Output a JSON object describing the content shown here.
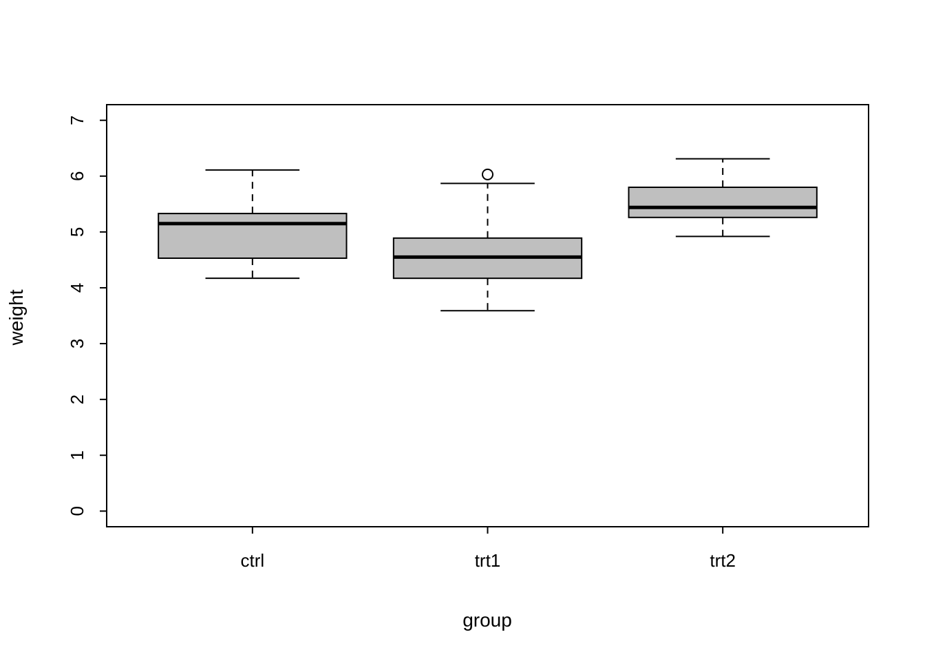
{
  "chart_data": {
    "type": "boxplot",
    "title": "",
    "xlabel": "group",
    "ylabel": "weight",
    "categories": [
      "ctrl",
      "trt1",
      "trt2"
    ],
    "ylim": [
      0,
      7
    ],
    "yticks": [
      0,
      1,
      2,
      3,
      4,
      5,
      6,
      7
    ],
    "grid": false,
    "legend": "none",
    "boxes": [
      {
        "group": "ctrl",
        "whisker_low": 4.17,
        "q1": 4.53,
        "median": 5.15,
        "q3": 5.33,
        "whisker_high": 6.11,
        "outliers": []
      },
      {
        "group": "trt1",
        "whisker_low": 3.59,
        "q1": 4.17,
        "median": 4.55,
        "q3": 4.89,
        "whisker_high": 5.87,
        "outliers": [
          6.03
        ]
      },
      {
        "group": "trt2",
        "whisker_low": 4.92,
        "q1": 5.26,
        "median": 5.44,
        "q3": 5.8,
        "whisker_high": 6.31,
        "outliers": []
      }
    ],
    "style": {
      "box_fill": "#bfbfbf",
      "line_color": "#000000",
      "background": "#ffffff"
    }
  }
}
